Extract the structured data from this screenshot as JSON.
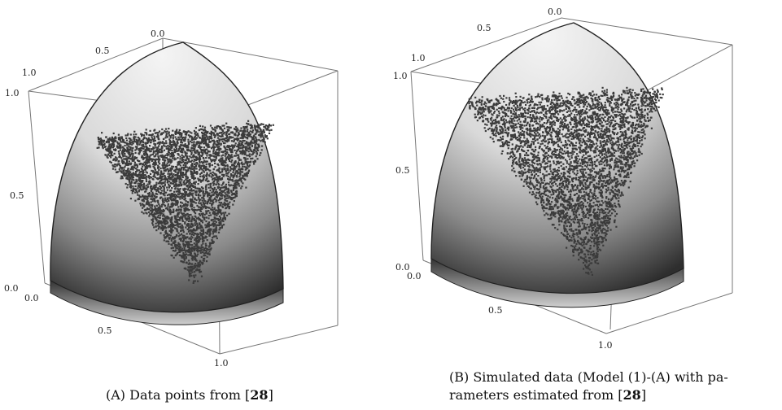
{
  "figure": {
    "panels": [
      {
        "id": "a",
        "caption": {
          "label": "(A)",
          "text_before": "Data points from [",
          "ref": "28",
          "text_after": "]"
        }
      },
      {
        "id": "b",
        "caption": {
          "label": "(B)",
          "line1": "Simulated data (Model (1)-(A) with pa-",
          "line2_before": "rameters estimated from [",
          "ref": "28",
          "line2_after": "]"
        }
      }
    ]
  },
  "chart_data": [
    {
      "type": "scatter",
      "title": "",
      "axes": {
        "x": {
          "ticks": [
            "0.0",
            "0.5",
            "1.0"
          ],
          "range": [
            0,
            1
          ]
        },
        "y": {
          "ticks": [
            "0.0",
            "0.5",
            "1.0"
          ],
          "range": [
            0,
            1
          ]
        },
        "z": {
          "ticks": [
            "0.0",
            "0.5",
            "1.0"
          ],
          "range": [
            0,
            1
          ]
        }
      },
      "surface": "unit sphere octant",
      "point_region": "triangular cluster near center of the octant",
      "point_color": "#3b3b3b",
      "surface_colors": {
        "light": "#f3f3f3",
        "dark": "#2a2a2a"
      }
    },
    {
      "type": "scatter",
      "title": "",
      "axes": {
        "x": {
          "ticks": [
            "0.0",
            "0.5",
            "1.0"
          ],
          "range": [
            0,
            1
          ]
        },
        "y": {
          "ticks": [
            "0.0",
            "0.5",
            "1.0"
          ],
          "range": [
            0,
            1
          ]
        },
        "z": {
          "ticks": [
            "0.0",
            "0.5",
            "1.0"
          ],
          "range": [
            0,
            1
          ]
        }
      },
      "surface": "unit sphere octant",
      "point_region": "triangular cluster near center of the octant",
      "point_color": "#3b3b3b",
      "surface_colors": {
        "light": "#f3f3f3",
        "dark": "#2a2a2a"
      }
    }
  ]
}
